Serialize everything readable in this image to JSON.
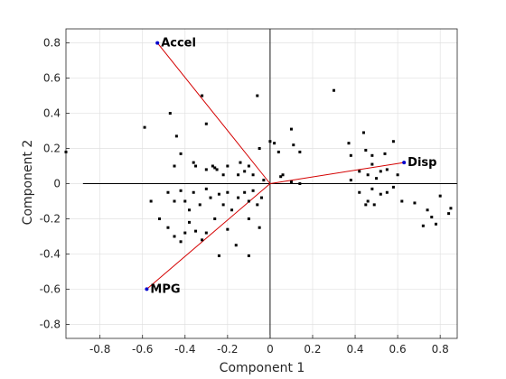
{
  "chart_data": {
    "type": "scatter",
    "title": "",
    "xlabel": "Component 1",
    "ylabel": "Component 2",
    "xlim": [
      -0.96,
      0.88
    ],
    "ylim": [
      -0.88,
      0.88
    ],
    "xticks": [
      -0.8,
      -0.6,
      -0.4,
      -0.2,
      0,
      0.2,
      0.4,
      0.6,
      0.8
    ],
    "yticks": [
      -0.8,
      -0.6,
      -0.4,
      -0.2,
      0,
      0.2,
      0.4,
      0.6,
      0.8
    ],
    "xtick_labels": [
      "-0.8",
      "-0.6",
      "-0.4",
      "-0.2",
      "0",
      "0.2",
      "0.4",
      "0.6",
      "0.8"
    ],
    "ytick_labels": [
      "-0.8",
      "-0.6",
      "-0.4",
      "-0.2",
      "0",
      "0.2",
      "0.4",
      "0.6",
      "0.8"
    ],
    "grid": true,
    "colors": {
      "vector": "#d40000",
      "vector_tip": "#0000cc",
      "point": "#000000",
      "grid": "#e0e0e0"
    },
    "vectors": [
      {
        "name": "Accel",
        "x": -0.53,
        "y": 0.8
      },
      {
        "name": "Disp",
        "x": 0.63,
        "y": 0.12
      },
      {
        "name": "MPG",
        "x": -0.58,
        "y": -0.6
      }
    ],
    "points": [
      [
        -0.96,
        0.18
      ],
      [
        -0.59,
        0.32
      ],
      [
        -0.47,
        0.4
      ],
      [
        -0.44,
        0.27
      ],
      [
        -0.32,
        0.5
      ],
      [
        -0.06,
        0.5
      ],
      [
        0.3,
        0.53
      ],
      [
        -0.3,
        0.34
      ],
      [
        -0.42,
        0.17
      ],
      [
        -0.45,
        0.1
      ],
      [
        -0.36,
        0.12
      ],
      [
        -0.35,
        0.1
      ],
      [
        -0.3,
        0.08
      ],
      [
        -0.27,
        0.1
      ],
      [
        -0.26,
        0.09
      ],
      [
        -0.25,
        0.08
      ],
      [
        -0.22,
        0.05
      ],
      [
        -0.2,
        0.1
      ],
      [
        -0.15,
        0.05
      ],
      [
        -0.14,
        0.12
      ],
      [
        -0.12,
        0.07
      ],
      [
        -0.1,
        0.1
      ],
      [
        -0.08,
        0.05
      ],
      [
        -0.05,
        0.2
      ],
      [
        -0.03,
        0.02
      ],
      [
        0.0,
        0.24
      ],
      [
        0.02,
        0.23
      ],
      [
        0.04,
        0.18
      ],
      [
        0.06,
        0.05
      ],
      [
        0.1,
        0.31
      ],
      [
        0.11,
        0.22
      ],
      [
        0.14,
        0.18
      ],
      [
        0.05,
        0.04
      ],
      [
        0.1,
        0.01
      ],
      [
        0.14,
        0.0
      ],
      [
        -0.56,
        -0.1
      ],
      [
        -0.48,
        -0.05
      ],
      [
        -0.45,
        -0.1
      ],
      [
        -0.42,
        -0.04
      ],
      [
        -0.4,
        -0.1
      ],
      [
        -0.38,
        -0.15
      ],
      [
        -0.36,
        -0.05
      ],
      [
        -0.33,
        -0.12
      ],
      [
        -0.3,
        -0.03
      ],
      [
        -0.28,
        -0.08
      ],
      [
        -0.26,
        -0.2
      ],
      [
        -0.24,
        -0.06
      ],
      [
        -0.22,
        -0.12
      ],
      [
        -0.2,
        -0.05
      ],
      [
        -0.18,
        -0.15
      ],
      [
        -0.15,
        -0.08
      ],
      [
        -0.12,
        -0.05
      ],
      [
        -0.1,
        -0.1
      ],
      [
        -0.08,
        -0.04
      ],
      [
        -0.06,
        -0.12
      ],
      [
        -0.04,
        -0.08
      ],
      [
        -0.48,
        -0.25
      ],
      [
        -0.45,
        -0.3
      ],
      [
        -0.42,
        -0.33
      ],
      [
        -0.38,
        -0.22
      ],
      [
        -0.35,
        -0.27
      ],
      [
        -0.32,
        -0.32
      ],
      [
        -0.3,
        -0.28
      ],
      [
        -0.2,
        -0.26
      ],
      [
        -0.16,
        -0.35
      ],
      [
        -0.1,
        -0.2
      ],
      [
        -0.05,
        -0.25
      ],
      [
        -0.24,
        -0.41
      ],
      [
        -0.1,
        -0.41
      ],
      [
        -0.52,
        -0.2
      ],
      [
        -0.4,
        -0.28
      ],
      [
        0.37,
        0.23
      ],
      [
        0.44,
        0.29
      ],
      [
        0.45,
        0.19
      ],
      [
        0.48,
        0.16
      ],
      [
        0.54,
        0.17
      ],
      [
        0.58,
        0.24
      ],
      [
        0.38,
        0.16
      ],
      [
        0.42,
        0.07
      ],
      [
        0.46,
        0.05
      ],
      [
        0.48,
        0.11
      ],
      [
        0.5,
        0.03
      ],
      [
        0.52,
        0.07
      ],
      [
        0.55,
        0.08
      ],
      [
        0.6,
        0.05
      ],
      [
        0.38,
        0.02
      ],
      [
        0.42,
        -0.05
      ],
      [
        0.45,
        -0.12
      ],
      [
        0.48,
        -0.03
      ],
      [
        0.52,
        -0.06
      ],
      [
        0.55,
        -0.05
      ],
      [
        0.58,
        -0.02
      ],
      [
        0.46,
        -0.1
      ],
      [
        0.49,
        -0.12
      ],
      [
        0.62,
        -0.1
      ],
      [
        0.68,
        -0.11
      ],
      [
        0.72,
        -0.24
      ],
      [
        0.74,
        -0.15
      ],
      [
        0.76,
        -0.19
      ],
      [
        0.8,
        -0.07
      ],
      [
        0.85,
        -0.14
      ],
      [
        0.84,
        -0.17
      ],
      [
        0.78,
        -0.23
      ]
    ]
  }
}
